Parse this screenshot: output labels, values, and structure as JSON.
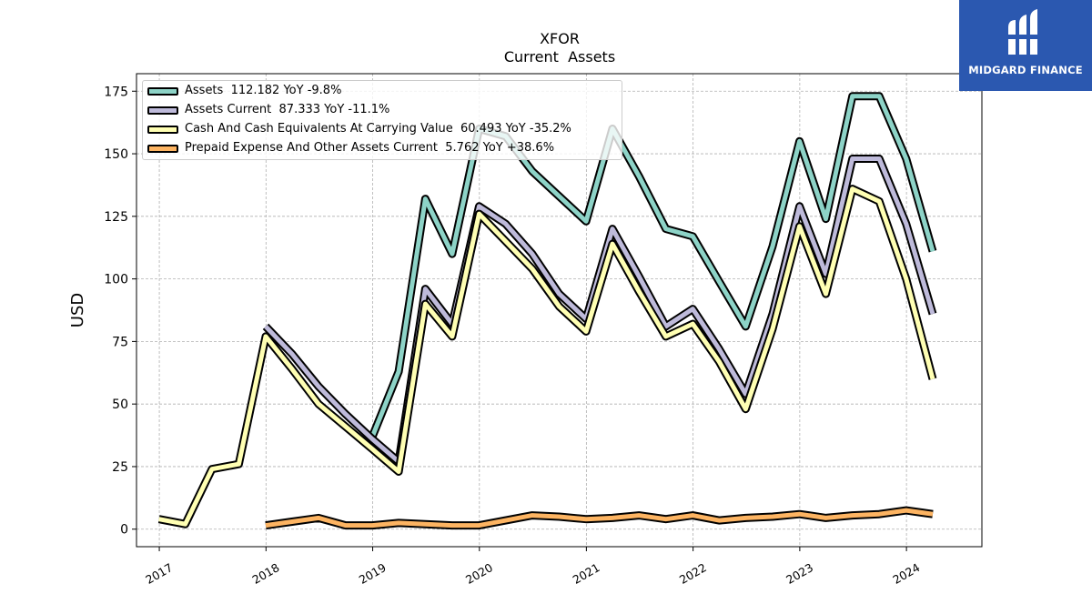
{
  "logo": {
    "text": "MIDGARD FINANCE",
    "icon": "midgard-logo-icon"
  },
  "chart_data": {
    "type": "line",
    "title": "XFOR",
    "subtitle": "Current  Assets",
    "ylabel": "USD",
    "xlabel": "",
    "xlim": [
      "2016-10-15",
      "2024-09-15"
    ],
    "ylim": [
      -7,
      182
    ],
    "yticks": [
      0,
      25,
      50,
      75,
      100,
      125,
      150,
      175
    ],
    "xticks": [
      "2017",
      "2018",
      "2019",
      "2020",
      "2021",
      "2022",
      "2023",
      "2024"
    ],
    "grid": true,
    "legend_position": "top-left",
    "series": [
      {
        "name": "Assets",
        "legend": "Assets  112.182 YoY -9.8%",
        "color": "#8dd3c7",
        "points": [
          [
            "2018-12-31",
            37
          ],
          [
            "2019-03-31",
            63
          ],
          [
            "2019-06-30",
            132
          ],
          [
            "2019-09-30",
            110
          ],
          [
            "2019-12-31",
            160
          ],
          [
            "2020-03-31",
            157
          ],
          [
            "2020-06-30",
            143
          ],
          [
            "2020-09-30",
            133
          ],
          [
            "2020-12-31",
            123
          ],
          [
            "2021-03-31",
            160
          ],
          [
            "2021-06-30",
            141
          ],
          [
            "2021-09-30",
            120
          ],
          [
            "2021-12-31",
            117
          ],
          [
            "2022-03-31",
            99
          ],
          [
            "2022-06-30",
            81
          ],
          [
            "2022-09-30",
            113
          ],
          [
            "2022-12-31",
            155
          ],
          [
            "2023-03-31",
            124
          ],
          [
            "2023-06-30",
            173
          ],
          [
            "2023-09-30",
            173
          ],
          [
            "2023-12-31",
            148
          ],
          [
            "2024-03-31",
            111
          ]
        ]
      },
      {
        "name": "Assets Current",
        "legend": "Assets Current  87.333 YoY -11.1%",
        "color": "#bebada",
        "points": [
          [
            "2017-12-31",
            81
          ],
          [
            "2018-03-31",
            70
          ],
          [
            "2018-06-30",
            57
          ],
          [
            "2018-09-30",
            46
          ],
          [
            "2018-12-31",
            36
          ],
          [
            "2019-03-31",
            27
          ],
          [
            "2019-06-30",
            96
          ],
          [
            "2019-09-30",
            82
          ],
          [
            "2019-12-31",
            129
          ],
          [
            "2020-03-31",
            122
          ],
          [
            "2020-06-30",
            110
          ],
          [
            "2020-09-30",
            94
          ],
          [
            "2020-12-31",
            84
          ],
          [
            "2021-03-31",
            120
          ],
          [
            "2021-06-30",
            101
          ],
          [
            "2021-09-30",
            81
          ],
          [
            "2021-12-31",
            88
          ],
          [
            "2022-03-31",
            72
          ],
          [
            "2022-06-30",
            54
          ],
          [
            "2022-09-30",
            86
          ],
          [
            "2022-12-31",
            129
          ],
          [
            "2023-03-31",
            102
          ],
          [
            "2023-06-30",
            148
          ],
          [
            "2023-09-30",
            148
          ],
          [
            "2023-12-31",
            122
          ],
          [
            "2024-03-31",
            86
          ]
        ]
      },
      {
        "name": "Cash And Cash Equivalents At Carrying Value",
        "legend": "Cash And Cash Equivalents At Carrying Value  60.493 YoY -35.2%",
        "color": "#ffffb3",
        "points": [
          [
            "2016-12-31",
            4
          ],
          [
            "2017-03-31",
            2
          ],
          [
            "2017-06-30",
            24
          ],
          [
            "2017-09-30",
            26
          ],
          [
            "2017-12-31",
            77
          ],
          [
            "2018-03-31",
            64
          ],
          [
            "2018-06-30",
            50
          ],
          [
            "2018-09-30",
            41
          ],
          [
            "2018-12-31",
            32
          ],
          [
            "2019-03-31",
            23
          ],
          [
            "2019-06-30",
            90
          ],
          [
            "2019-09-30",
            77
          ],
          [
            "2019-12-31",
            126
          ],
          [
            "2020-03-31",
            115
          ],
          [
            "2020-06-30",
            104
          ],
          [
            "2020-09-30",
            89
          ],
          [
            "2020-12-31",
            79
          ],
          [
            "2021-03-31",
            114
          ],
          [
            "2021-06-30",
            95
          ],
          [
            "2021-09-30",
            77
          ],
          [
            "2021-12-31",
            82
          ],
          [
            "2022-03-31",
            67
          ],
          [
            "2022-06-30",
            48
          ],
          [
            "2022-09-30",
            80
          ],
          [
            "2022-12-31",
            121
          ],
          [
            "2023-03-31",
            94
          ],
          [
            "2023-06-30",
            136
          ],
          [
            "2023-09-30",
            131
          ],
          [
            "2023-12-31",
            100
          ],
          [
            "2024-03-31",
            60
          ]
        ]
      },
      {
        "name": "Prepaid Expense And Other Assets Current",
        "legend": "Prepaid Expense And Other Assets Current  5.762 YoY +38.6%",
        "color": "#fdb462",
        "points": [
          [
            "2017-12-31",
            1.5
          ],
          [
            "2018-03-31",
            3
          ],
          [
            "2018-06-30",
            4.5
          ],
          [
            "2018-09-30",
            1.5
          ],
          [
            "2018-12-31",
            1.5
          ],
          [
            "2019-03-31",
            2.5
          ],
          [
            "2019-06-30",
            2
          ],
          [
            "2019-09-30",
            1.5
          ],
          [
            "2019-12-31",
            1.5
          ],
          [
            "2020-03-31",
            3.5
          ],
          [
            "2020-06-30",
            5.5
          ],
          [
            "2020-09-30",
            5
          ],
          [
            "2020-12-31",
            4
          ],
          [
            "2021-03-31",
            4.5
          ],
          [
            "2021-06-30",
            5.5
          ],
          [
            "2021-09-30",
            4
          ],
          [
            "2021-12-31",
            5.5
          ],
          [
            "2022-03-31",
            3.5
          ],
          [
            "2022-06-30",
            4.5
          ],
          [
            "2022-09-30",
            5
          ],
          [
            "2022-12-31",
            6
          ],
          [
            "2023-03-31",
            4.5
          ],
          [
            "2023-06-30",
            5.5
          ],
          [
            "2023-09-30",
            6
          ],
          [
            "2023-12-31",
            7.5
          ],
          [
            "2024-03-31",
            6
          ]
        ]
      }
    ]
  }
}
